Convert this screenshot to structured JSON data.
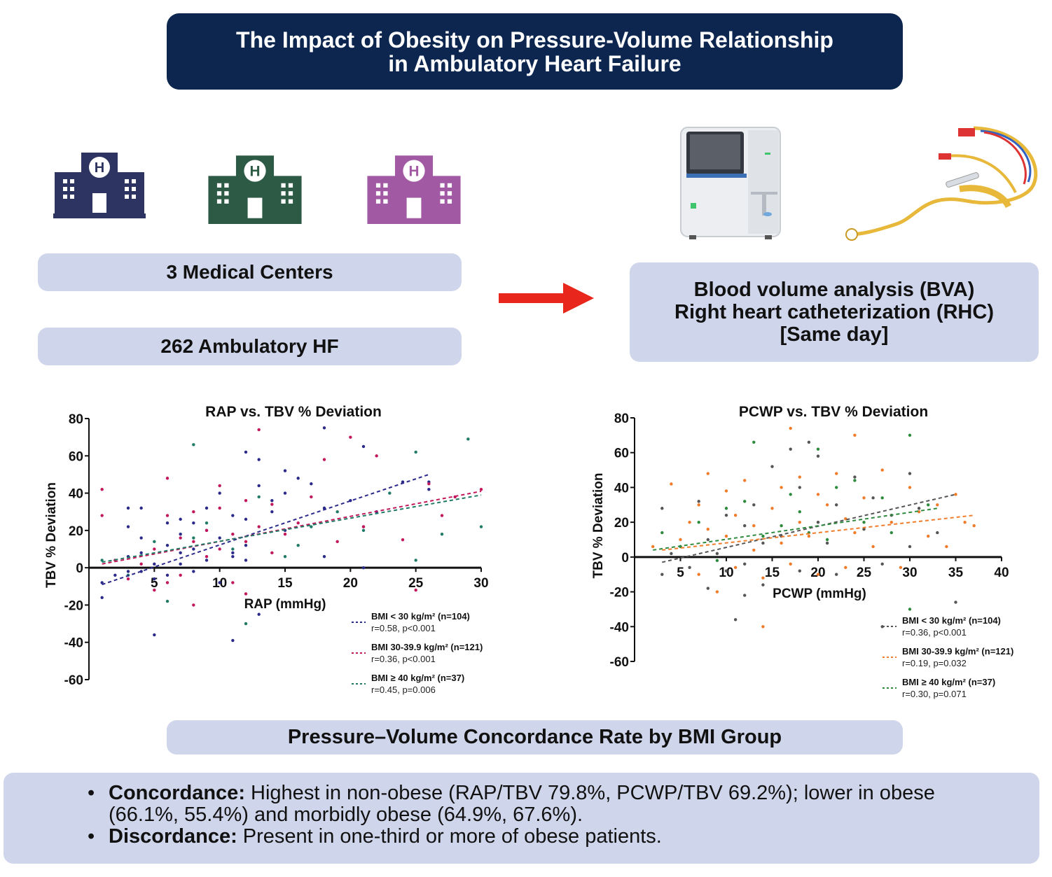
{
  "header": {
    "title_line1": "The Impact of Obesity on Pressure-Volume Relationship",
    "title_line2": "in Ambulatory Heart Failure"
  },
  "left_panel": {
    "centers_label": "3 Medical Centers",
    "cohort_label": "262 Ambulatory HF",
    "hospital_icons": [
      {
        "icon": "hospital-icon",
        "color": "#2d3461"
      },
      {
        "icon": "hospital-icon",
        "color": "#2d5a45"
      },
      {
        "icon": "hospital-icon",
        "color": "#a259a4"
      }
    ]
  },
  "right_panel": {
    "line1": "Blood volume analysis (BVA)",
    "line2": "Right heart catheterization (RHC)",
    "line3": "[Same day]",
    "icons": [
      "blood-analyzer-icon",
      "catheter-icon"
    ]
  },
  "arrow": {
    "icon": "right-arrow-icon",
    "color": "#e8261c"
  },
  "concordance_heading": "Pressure–Volume Concordance Rate by BMI Group",
  "summary": {
    "item1_term": "Concordance:",
    "item1_text": " Highest in non-obese (RAP/TBV 79.8%, PCWP/TBV 69.2%); lower in obese (66.1%, 55.4%) and morbidly obese (64.9%, 67.6%).",
    "item2_term": "Discordance:",
    "item2_text": " Present in one-third or more of obese patients."
  },
  "chart_data": [
    {
      "type": "scatter",
      "title": "RAP vs. TBV %  Deviation",
      "xlabel": "RAP (mmHg)",
      "ylabel": "TBV % Deviation",
      "xlim": [
        0,
        30
      ],
      "ylim": [
        -60,
        80
      ],
      "xticks": [
        5,
        10,
        15,
        20,
        25,
        30
      ],
      "yticks": [
        -60,
        -40,
        -20,
        0,
        20,
        40,
        60,
        80
      ],
      "series": [
        {
          "name": "BMI < 30 kg/m² (n=104)",
          "stat": "r=0.58, p<0.001",
          "color": "#2b2a8a",
          "trend": [
            [
              1,
              -9
            ],
            [
              26,
              50
            ]
          ],
          "points": [
            [
              1,
              -16
            ],
            [
              1,
              -8
            ],
            [
              2,
              -4
            ],
            [
              3,
              -2
            ],
            [
              3,
              6
            ],
            [
              3,
              22
            ],
            [
              3,
              32
            ],
            [
              4,
              -2
            ],
            [
              4,
              8
            ],
            [
              4,
              16
            ],
            [
              4,
              32
            ],
            [
              5,
              -36
            ],
            [
              5,
              -6
            ],
            [
              5,
              2
            ],
            [
              6,
              -4
            ],
            [
              6,
              12
            ],
            [
              6,
              24
            ],
            [
              7,
              2
            ],
            [
              7,
              8
            ],
            [
              7,
              18
            ],
            [
              7,
              26
            ],
            [
              8,
              -2
            ],
            [
              8,
              10
            ],
            [
              8,
              24
            ],
            [
              9,
              4
            ],
            [
              9,
              20
            ],
            [
              9,
              32
            ],
            [
              10,
              -8
            ],
            [
              10,
              16
            ],
            [
              10,
              40
            ],
            [
              11,
              8
            ],
            [
              11,
              28
            ],
            [
              12,
              12
            ],
            [
              12,
              26
            ],
            [
              12,
              62
            ],
            [
              13,
              44
            ],
            [
              13,
              58
            ],
            [
              13,
              -25
            ],
            [
              14,
              30
            ],
            [
              14,
              36
            ],
            [
              15,
              20
            ],
            [
              15,
              40
            ],
            [
              15,
              52
            ],
            [
              16,
              48
            ],
            [
              17,
              45
            ],
            [
              18,
              6
            ],
            [
              18,
              32
            ],
            [
              18,
              75
            ],
            [
              20,
              36
            ],
            [
              21,
              65
            ],
            [
              21,
              22
            ],
            [
              21,
              0
            ],
            [
              22,
              30
            ],
            [
              24,
              46
            ],
            [
              26,
              42
            ],
            [
              26,
              46
            ],
            [
              11,
              -39
            ],
            [
              11,
              6
            ],
            [
              12,
              4
            ]
          ]
        },
        {
          "name": "BMI 30-39.9 kg/m² (n=121)",
          "stat": "r=0.36, p<0.001",
          "color": "#c2185b",
          "trend": [
            [
              1,
              2
            ],
            [
              30,
              41
            ]
          ],
          "points": [
            [
              1,
              42
            ],
            [
              1,
              28
            ],
            [
              2,
              4
            ],
            [
              3,
              -6
            ],
            [
              4,
              2
            ],
            [
              5,
              10
            ],
            [
              5,
              -12
            ],
            [
              6,
              48
            ],
            [
              6,
              28
            ],
            [
              6,
              -8
            ],
            [
              7,
              16
            ],
            [
              7,
              -4
            ],
            [
              8,
              -20
            ],
            [
              8,
              14
            ],
            [
              8,
              30
            ],
            [
              9,
              20
            ],
            [
              9,
              6
            ],
            [
              10,
              44
            ],
            [
              10,
              32
            ],
            [
              10,
              10
            ],
            [
              11,
              18
            ],
            [
              11,
              -8
            ],
            [
              12,
              36
            ],
            [
              12,
              14
            ],
            [
              12,
              -14
            ],
            [
              13,
              74
            ],
            [
              13,
              22
            ],
            [
              14,
              34
            ],
            [
              14,
              8
            ],
            [
              15,
              18
            ],
            [
              16,
              24
            ],
            [
              17,
              38
            ],
            [
              18,
              58
            ],
            [
              19,
              14
            ],
            [
              20,
              70
            ],
            [
              21,
              22
            ],
            [
              22,
              60
            ],
            [
              24,
              15
            ],
            [
              25,
              -12
            ],
            [
              26,
              45
            ],
            [
              27,
              28
            ],
            [
              28,
              38
            ],
            [
              30,
              42
            ]
          ]
        },
        {
          "name": "BMI ≥ 40 kg/m² (n=37)",
          "stat": "r=0.45, p=0.006",
          "color": "#1f7a66",
          "trend": [
            [
              1,
              3
            ],
            [
              30,
              39
            ]
          ],
          "points": [
            [
              1,
              4
            ],
            [
              3,
              -4
            ],
            [
              5,
              14
            ],
            [
              6,
              -18
            ],
            [
              8,
              66
            ],
            [
              8,
              16
            ],
            [
              9,
              24
            ],
            [
              11,
              10
            ],
            [
              12,
              -30
            ],
            [
              13,
              38
            ],
            [
              15,
              6
            ],
            [
              16,
              12
            ],
            [
              17,
              22
            ],
            [
              19,
              30
            ],
            [
              21,
              20
            ],
            [
              23,
              40
            ],
            [
              25,
              62
            ],
            [
              25,
              4
            ],
            [
              27,
              18
            ],
            [
              29,
              69
            ],
            [
              30,
              22
            ]
          ]
        }
      ]
    },
    {
      "type": "scatter",
      "title": "PCWP vs. TBV %  Deviation",
      "xlabel": "PCWP (mmHg)",
      "ylabel": "TBV % Deviation",
      "xlim": [
        0,
        40
      ],
      "ylim": [
        -60,
        80
      ],
      "xticks": [
        5,
        10,
        15,
        20,
        25,
        30,
        35,
        40
      ],
      "yticks": [
        -60,
        -40,
        -20,
        0,
        20,
        40,
        60,
        80
      ],
      "series": [
        {
          "name": "BMI < 30 kg/m² (n=104)",
          "stat": "r=0.36, p<0.001",
          "color": "#555555",
          "trend": [
            [
              3,
              -3
            ],
            [
              35,
              36
            ]
          ],
          "points": [
            [
              3,
              28
            ],
            [
              3,
              -10
            ],
            [
              4,
              2
            ],
            [
              5,
              6
            ],
            [
              6,
              -6
            ],
            [
              7,
              32
            ],
            [
              8,
              10
            ],
            [
              8,
              -18
            ],
            [
              9,
              2
            ],
            [
              10,
              24
            ],
            [
              10,
              -8
            ],
            [
              11,
              -36
            ],
            [
              12,
              18
            ],
            [
              12,
              -4
            ],
            [
              13,
              30
            ],
            [
              14,
              8
            ],
            [
              14,
              -16
            ],
            [
              15,
              52
            ],
            [
              16,
              12
            ],
            [
              17,
              62
            ],
            [
              18,
              -8
            ],
            [
              18,
              40
            ],
            [
              19,
              66
            ],
            [
              20,
              58
            ],
            [
              20,
              20
            ],
            [
              21,
              8
            ],
            [
              22,
              30
            ],
            [
              22,
              -10
            ],
            [
              24,
              46
            ],
            [
              25,
              16
            ],
            [
              26,
              34
            ],
            [
              27,
              -4
            ],
            [
              28,
              24
            ],
            [
              30,
              48
            ],
            [
              30,
              6
            ],
            [
              31,
              28
            ],
            [
              33,
              14
            ],
            [
              35,
              -26
            ],
            [
              27,
              -40
            ],
            [
              12,
              -22
            ]
          ]
        },
        {
          "name": "BMI 30-39.9 kg/m² (n=121)",
          "stat": "r=0.19, p=0.032",
          "color": "#f07c2a",
          "trend": [
            [
              3,
              4
            ],
            [
              37,
              24
            ]
          ],
          "points": [
            [
              2,
              6
            ],
            [
              4,
              42
            ],
            [
              5,
              10
            ],
            [
              6,
              20
            ],
            [
              7,
              -10
            ],
            [
              7,
              30
            ],
            [
              8,
              48
            ],
            [
              8,
              16
            ],
            [
              9,
              -20
            ],
            [
              10,
              12
            ],
            [
              10,
              38
            ],
            [
              11,
              24
            ],
            [
              11,
              -6
            ],
            [
              12,
              44
            ],
            [
              13,
              4
            ],
            [
              13,
              18
            ],
            [
              14,
              -12
            ],
            [
              15,
              28
            ],
            [
              16,
              40
            ],
            [
              16,
              8
            ],
            [
              17,
              74
            ],
            [
              17,
              -4
            ],
            [
              18,
              46
            ],
            [
              18,
              20
            ],
            [
              19,
              12
            ],
            [
              20,
              36
            ],
            [
              20,
              -10
            ],
            [
              21,
              30
            ],
            [
              22,
              48
            ],
            [
              23,
              22
            ],
            [
              23,
              -6
            ],
            [
              24,
              70
            ],
            [
              24,
              14
            ],
            [
              25,
              34
            ],
            [
              26,
              6
            ],
            [
              27,
              50
            ],
            [
              28,
              20
            ],
            [
              29,
              -6
            ],
            [
              30,
              40
            ],
            [
              31,
              26
            ],
            [
              32,
              12
            ],
            [
              33,
              30
            ],
            [
              34,
              6
            ],
            [
              35,
              36
            ],
            [
              36,
              20
            ],
            [
              37,
              18
            ],
            [
              14,
              -40
            ]
          ]
        },
        {
          "name": "BMI ≥ 40 kg/m² (n=37)",
          "stat": "r=0.30, p=0.071",
          "color": "#2e8b3e",
          "trend": [
            [
              2,
              4
            ],
            [
              33,
              28
            ]
          ],
          "points": [
            [
              3,
              14
            ],
            [
              5,
              6
            ],
            [
              7,
              20
            ],
            [
              9,
              -2
            ],
            [
              10,
              28
            ],
            [
              12,
              32
            ],
            [
              13,
              66
            ],
            [
              14,
              12
            ],
            [
              16,
              18
            ],
            [
              17,
              36
            ],
            [
              18,
              26
            ],
            [
              19,
              14
            ],
            [
              20,
              62
            ],
            [
              21,
              10
            ],
            [
              22,
              40
            ],
            [
              24,
              44
            ],
            [
              25,
              20
            ],
            [
              27,
              34
            ],
            [
              28,
              14
            ],
            [
              30,
              70
            ],
            [
              30,
              -30
            ],
            [
              32,
              30
            ]
          ]
        }
      ]
    }
  ]
}
